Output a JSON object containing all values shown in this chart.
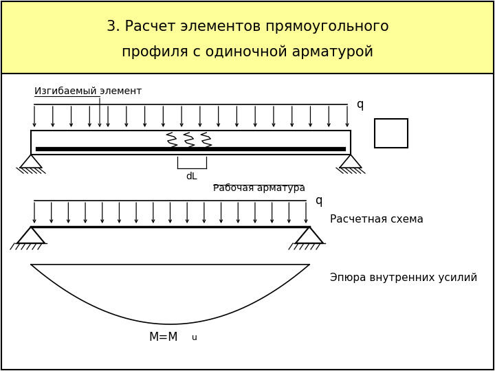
{
  "title_line1": "3. Расчет элементов прямоугольного",
  "title_line2": "профиля с одиночной арматурой",
  "title_bg": "#FFFF99",
  "bg_color": "#FFFFFF",
  "label_izgib": "Изгибаемый элемент",
  "label_rabochaya": "Рабочая арматура",
  "label_dL": "dL",
  "label_q1": "q",
  "label_q2": "q",
  "label_rasch": "Расчетная схема",
  "label_epura": "Эпюра внутренних усилий",
  "label_M": "M=M",
  "label_Mu": "u",
  "outer_border": true,
  "font_title": 15,
  "font_main": 10,
  "font_q": 12
}
